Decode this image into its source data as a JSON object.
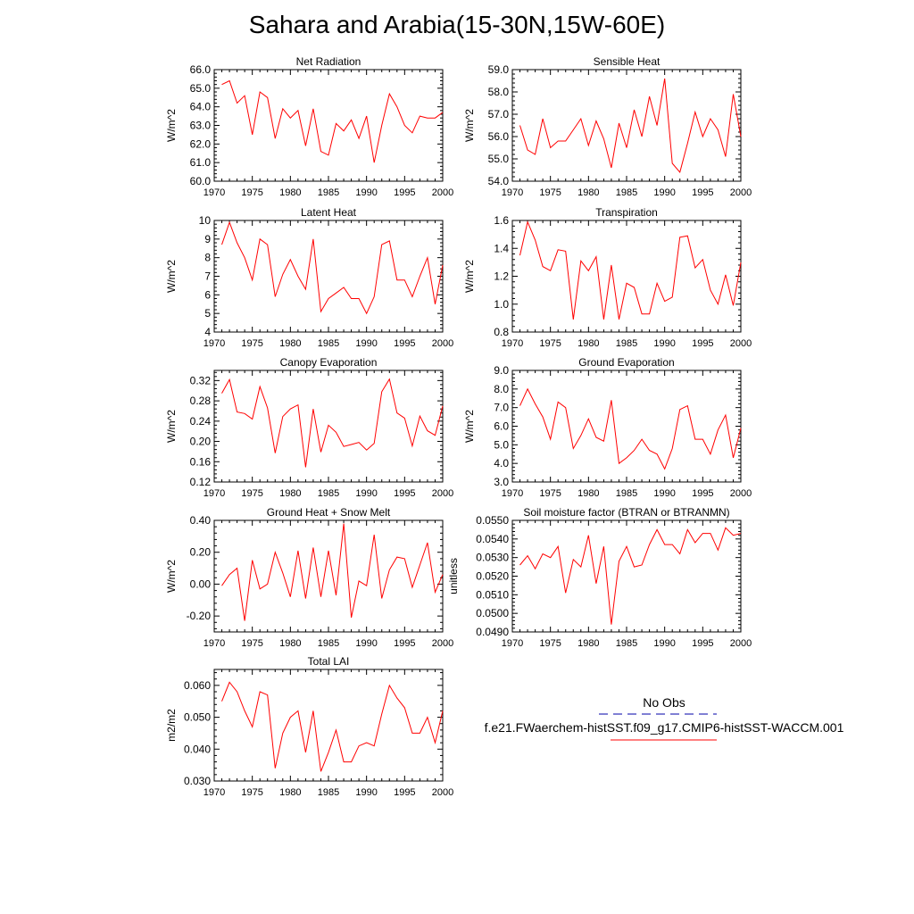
{
  "title": "Sahara and Arabia(15-30N,15W-60E)",
  "line_color": "#ff0000",
  "obs_line_color": "#0000aa",
  "legend": {
    "obs_label": "No Obs",
    "model_label": "f.e21.FWaerchem-histSST.f09_g17.CMIP6-histSST-WACCM.001"
  },
  "chart_data": [
    {
      "type": "line",
      "title": "Net Radiation",
      "ylabel": "W/m^2",
      "xlim": [
        1970,
        2000
      ],
      "ylim": [
        60.0,
        66.0
      ],
      "yticks": [
        60.0,
        61.0,
        62.0,
        63.0,
        64.0,
        65.0,
        66.0
      ],
      "yticklabels": [
        "60.0",
        "61.0",
        "62.0",
        "63.0",
        "64.0",
        "65.0",
        "66.0"
      ],
      "xticks": [
        1970,
        1975,
        1980,
        1985,
        1990,
        1995,
        2000
      ],
      "x": [
        1971,
        1972,
        1973,
        1974,
        1975,
        1976,
        1977,
        1978,
        1979,
        1980,
        1981,
        1982,
        1983,
        1984,
        1985,
        1986,
        1987,
        1988,
        1989,
        1990,
        1991,
        1992,
        1993,
        1994,
        1995,
        1996,
        1997,
        1998,
        1999,
        2000
      ],
      "series": [
        {
          "values": [
            65.2,
            65.4,
            64.2,
            64.6,
            62.5,
            64.8,
            64.5,
            62.3,
            63.9,
            63.4,
            63.8,
            61.9,
            63.9,
            61.6,
            61.4,
            63.1,
            62.7,
            63.3,
            62.3,
            63.5,
            61.0,
            63.0,
            64.7,
            64.0,
            63.0,
            62.6,
            63.5,
            63.4,
            63.4,
            63.7
          ]
        }
      ]
    },
    {
      "type": "line",
      "title": "Sensible Heat",
      "ylabel": "W/m^2",
      "xlim": [
        1970,
        2000
      ],
      "ylim": [
        54.0,
        59.0
      ],
      "yticks": [
        54.0,
        55.0,
        56.0,
        57.0,
        58.0,
        59.0
      ],
      "yticklabels": [
        "54.0",
        "55.0",
        "56.0",
        "57.0",
        "58.0",
        "59.0"
      ],
      "xticks": [
        1970,
        1975,
        1980,
        1985,
        1990,
        1995,
        2000
      ],
      "x": [
        1971,
        1972,
        1973,
        1974,
        1975,
        1976,
        1977,
        1978,
        1979,
        1980,
        1981,
        1982,
        1983,
        1984,
        1985,
        1986,
        1987,
        1988,
        1989,
        1990,
        1991,
        1992,
        1993,
        1994,
        1995,
        1996,
        1997,
        1998,
        1999,
        2000
      ],
      "series": [
        {
          "values": [
            56.5,
            55.4,
            55.2,
            56.8,
            55.5,
            55.8,
            55.8,
            56.3,
            56.8,
            55.6,
            56.7,
            55.9,
            54.6,
            56.6,
            55.5,
            57.2,
            56.0,
            57.8,
            56.5,
            58.6,
            54.8,
            54.4,
            55.7,
            57.1,
            56.0,
            56.8,
            56.3,
            55.1,
            57.9,
            56.0
          ]
        }
      ]
    },
    {
      "type": "line",
      "title": "Latent Heat",
      "ylabel": "W/m^2",
      "xlim": [
        1970,
        2000
      ],
      "ylim": [
        4,
        10
      ],
      "yticks": [
        4,
        5,
        6,
        7,
        8,
        9,
        10
      ],
      "yticklabels": [
        "4",
        "5",
        "6",
        "7",
        "8",
        "9",
        "10"
      ],
      "xticks": [
        1970,
        1975,
        1980,
        1985,
        1990,
        1995,
        2000
      ],
      "x": [
        1971,
        1972,
        1973,
        1974,
        1975,
        1976,
        1977,
        1978,
        1979,
        1980,
        1981,
        1982,
        1983,
        1984,
        1985,
        1986,
        1987,
        1988,
        1989,
        1990,
        1991,
        1992,
        1993,
        1994,
        1995,
        1996,
        1997,
        1998,
        1999,
        2000
      ],
      "series": [
        {
          "values": [
            8.7,
            9.9,
            8.8,
            8.0,
            6.8,
            9.0,
            8.7,
            5.9,
            7.1,
            7.9,
            7.0,
            6.3,
            9.0,
            5.1,
            5.8,
            6.1,
            6.4,
            5.8,
            5.8,
            5.0,
            5.9,
            8.7,
            8.9,
            6.8,
            6.8,
            5.9,
            7.0,
            8.0,
            5.5,
            7.6
          ]
        }
      ]
    },
    {
      "type": "line",
      "title": "Transpiration",
      "ylabel": "W/m^2",
      "xlim": [
        1970,
        2000
      ],
      "ylim": [
        0.8,
        1.6
      ],
      "yticks": [
        0.8,
        1.0,
        1.2,
        1.4,
        1.6
      ],
      "yticklabels": [
        "0.8",
        "1.0",
        "1.2",
        "1.4",
        "1.6"
      ],
      "xticks": [
        1970,
        1975,
        1980,
        1985,
        1990,
        1995,
        2000
      ],
      "x": [
        1971,
        1972,
        1973,
        1974,
        1975,
        1976,
        1977,
        1978,
        1979,
        1980,
        1981,
        1982,
        1983,
        1984,
        1985,
        1986,
        1987,
        1988,
        1989,
        1990,
        1991,
        1992,
        1993,
        1994,
        1995,
        1996,
        1997,
        1998,
        1999,
        2000
      ],
      "series": [
        {
          "values": [
            1.35,
            1.59,
            1.46,
            1.27,
            1.24,
            1.39,
            1.38,
            0.89,
            1.31,
            1.24,
            1.34,
            0.89,
            1.28,
            0.89,
            1.15,
            1.12,
            0.93,
            0.93,
            1.15,
            1.02,
            1.05,
            1.48,
            1.49,
            1.26,
            1.32,
            1.1,
            1.0,
            1.21,
            0.99,
            1.3
          ]
        }
      ]
    },
    {
      "type": "line",
      "title": "Canopy Evaporation",
      "ylabel": "W/m^2",
      "xlim": [
        1970,
        2000
      ],
      "ylim": [
        0.12,
        0.34
      ],
      "yticks": [
        0.12,
        0.16,
        0.2,
        0.24,
        0.28,
        0.32
      ],
      "yticklabels": [
        "0.12",
        "0.16",
        "0.20",
        "0.24",
        "0.28",
        "0.32"
      ],
      "xticks": [
        1970,
        1975,
        1980,
        1985,
        1990,
        1995,
        2000
      ],
      "x": [
        1971,
        1972,
        1973,
        1974,
        1975,
        1976,
        1977,
        1978,
        1979,
        1980,
        1981,
        1982,
        1983,
        1984,
        1985,
        1986,
        1987,
        1988,
        1989,
        1990,
        1991,
        1992,
        1993,
        1994,
        1995,
        1996,
        1997,
        1998,
        1999,
        2000
      ],
      "series": [
        {
          "values": [
            0.295,
            0.322,
            0.258,
            0.255,
            0.244,
            0.308,
            0.266,
            0.177,
            0.249,
            0.264,
            0.272,
            0.149,
            0.264,
            0.179,
            0.232,
            0.218,
            0.19,
            0.194,
            0.198,
            0.183,
            0.196,
            0.298,
            0.323,
            0.256,
            0.246,
            0.191,
            0.25,
            0.221,
            0.212,
            0.27
          ]
        }
      ]
    },
    {
      "type": "line",
      "title": "Ground Evaporation",
      "ylabel": "W/m^2",
      "xlim": [
        1970,
        2000
      ],
      "ylim": [
        3.0,
        9.0
      ],
      "yticks": [
        3.0,
        4.0,
        5.0,
        6.0,
        7.0,
        8.0,
        9.0
      ],
      "yticklabels": [
        "3.0",
        "4.0",
        "5.0",
        "6.0",
        "7.0",
        "8.0",
        "9.0"
      ],
      "xticks": [
        1970,
        1975,
        1980,
        1985,
        1990,
        1995,
        2000
      ],
      "x": [
        1971,
        1972,
        1973,
        1974,
        1975,
        1976,
        1977,
        1978,
        1979,
        1980,
        1981,
        1982,
        1983,
        1984,
        1985,
        1986,
        1987,
        1988,
        1989,
        1990,
        1991,
        1992,
        1993,
        1994,
        1995,
        1996,
        1997,
        1998,
        1999,
        2000
      ],
      "series": [
        {
          "values": [
            7.1,
            8.0,
            7.2,
            6.5,
            5.3,
            7.3,
            7.0,
            4.8,
            5.5,
            6.4,
            5.4,
            5.2,
            7.4,
            4.0,
            4.3,
            4.7,
            5.3,
            4.7,
            4.5,
            3.7,
            4.8,
            6.9,
            7.1,
            5.3,
            5.3,
            4.5,
            5.8,
            6.6,
            4.3,
            5.9
          ]
        }
      ]
    },
    {
      "type": "line",
      "title": "Ground Heat + Snow Melt",
      "ylabel": "W/m^2",
      "xlim": [
        1970,
        2000
      ],
      "ylim": [
        -0.3,
        0.4
      ],
      "yticks": [
        -0.2,
        0.0,
        0.2,
        0.4
      ],
      "yticklabels": [
        "-0.20",
        "0.00",
        "0.20",
        "0.40"
      ],
      "xticks": [
        1970,
        1975,
        1980,
        1985,
        1990,
        1995,
        2000
      ],
      "x": [
        1971,
        1972,
        1973,
        1974,
        1975,
        1976,
        1977,
        1978,
        1979,
        1980,
        1981,
        1982,
        1983,
        1984,
        1985,
        1986,
        1987,
        1988,
        1989,
        1990,
        1991,
        1992,
        1993,
        1994,
        1995,
        1996,
        1997,
        1998,
        1999,
        2000
      ],
      "series": [
        {
          "values": [
            -0.01,
            0.06,
            0.1,
            -0.23,
            0.15,
            -0.03,
            0.0,
            0.2,
            0.07,
            -0.08,
            0.21,
            -0.09,
            0.23,
            -0.08,
            0.21,
            -0.07,
            0.38,
            -0.21,
            0.02,
            -0.01,
            0.31,
            -0.09,
            0.09,
            0.17,
            0.16,
            -0.02,
            0.12,
            0.26,
            -0.05,
            0.06
          ]
        }
      ]
    },
    {
      "type": "line",
      "title": "Soil moisture factor (BTRAN or BTRANMN)",
      "ylabel": "unitless",
      "xlim": [
        1970,
        2000
      ],
      "ylim": [
        0.049,
        0.055
      ],
      "yticks": [
        0.049,
        0.05,
        0.051,
        0.052,
        0.053,
        0.054,
        0.055
      ],
      "yticklabels": [
        "0.0490",
        "0.0500",
        "0.0510",
        "0.0520",
        "0.0530",
        "0.0540",
        "0.0550"
      ],
      "xticks": [
        1970,
        1975,
        1980,
        1985,
        1990,
        1995,
        2000
      ],
      "x": [
        1971,
        1972,
        1973,
        1974,
        1975,
        1976,
        1977,
        1978,
        1979,
        1980,
        1981,
        1982,
        1983,
        1984,
        1985,
        1986,
        1987,
        1988,
        1989,
        1990,
        1991,
        1992,
        1993,
        1994,
        1995,
        1996,
        1997,
        1998,
        1999,
        2000
      ],
      "series": [
        {
          "values": [
            0.0526,
            0.0531,
            0.0524,
            0.0532,
            0.053,
            0.0536,
            0.0511,
            0.0529,
            0.0525,
            0.0542,
            0.0516,
            0.0536,
            0.0494,
            0.0528,
            0.0536,
            0.0525,
            0.0526,
            0.0537,
            0.0545,
            0.0537,
            0.0537,
            0.0532,
            0.0545,
            0.0538,
            0.0543,
            0.0543,
            0.0534,
            0.0546,
            0.0542,
            0.0543
          ]
        }
      ]
    },
    {
      "type": "line",
      "title": "Total LAI",
      "ylabel": "m2/m2",
      "xlim": [
        1970,
        2000
      ],
      "ylim": [
        0.03,
        0.065
      ],
      "yticks": [
        0.03,
        0.04,
        0.05,
        0.06
      ],
      "yticklabels": [
        "0.030",
        "0.040",
        "0.050",
        "0.060"
      ],
      "xticks": [
        1970,
        1975,
        1980,
        1985,
        1990,
        1995,
        2000
      ],
      "x": [
        1971,
        1972,
        1973,
        1974,
        1975,
        1976,
        1977,
        1978,
        1979,
        1980,
        1981,
        1982,
        1983,
        1984,
        1985,
        1986,
        1987,
        1988,
        1989,
        1990,
        1991,
        1992,
        1993,
        1994,
        1995,
        1996,
        1997,
        1998,
        1999,
        2000
      ],
      "series": [
        {
          "values": [
            0.055,
            0.061,
            0.058,
            0.052,
            0.047,
            0.058,
            0.057,
            0.034,
            0.045,
            0.05,
            0.052,
            0.039,
            0.052,
            0.033,
            0.039,
            0.046,
            0.036,
            0.036,
            0.041,
            0.042,
            0.041,
            0.051,
            0.06,
            0.056,
            0.053,
            0.045,
            0.045,
            0.05,
            0.042,
            0.052
          ]
        }
      ]
    }
  ]
}
